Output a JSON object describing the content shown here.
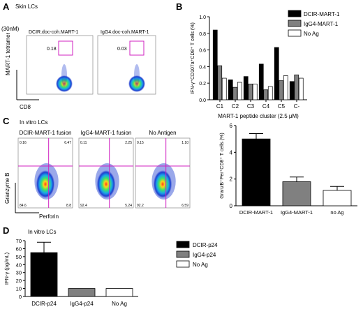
{
  "panelA": {
    "letter": "A",
    "subtitle": "Skin LCs",
    "dose": "(30nM)",
    "ylabel": "MART-1 tetramer",
    "xlabel": "CD8",
    "plots": [
      {
        "title": "DCIR.doc-coh.MART-1",
        "gate_value": "0.18"
      },
      {
        "title": "IgG4.doc-coh.MART-1",
        "gate_value": "0.03"
      }
    ]
  },
  "panelC_flow": {
    "letter": "C",
    "subtitle": "In vitro LCs",
    "ylabel": "Granzyme B",
    "xlabel": "Perforin",
    "plots": [
      {
        "title": "DCIR-MART-1 fusion",
        "quadrants": [
          "0.16",
          "6.47",
          "84.6",
          "8.8"
        ]
      },
      {
        "title": "IgG4-MART-1 fusion",
        "quadrants": [
          "0.11",
          "2.25",
          "92.4",
          "5.24"
        ]
      },
      {
        "title": "No Antigen",
        "quadrants": [
          "0.15",
          "1.10",
          "92.2",
          "6.59"
        ]
      }
    ]
  },
  "chart_data": [
    {
      "panel": "B",
      "type": "bar",
      "categories": [
        "C1",
        "C2",
        "C3",
        "C4",
        "C5",
        "C-"
      ],
      "series": [
        {
          "name": "DCIR-MART-1",
          "color": "#000000",
          "values": [
            0.84,
            0.24,
            0.28,
            0.43,
            0.63,
            0.22
          ]
        },
        {
          "name": "IgG4-MART-1",
          "color": "#808080",
          "values": [
            0.41,
            0.15,
            0.19,
            0.12,
            0.23,
            0.3
          ]
        },
        {
          "name": "No Ag",
          "color": "#ffffff",
          "values": [
            0.26,
            0.21,
            0.19,
            0.16,
            0.29,
            0.26
          ]
        }
      ],
      "yticks": [
        "0.0",
        "0.2",
        "0.4",
        "0.6",
        "0.8",
        "1.0"
      ],
      "ylim": [
        0,
        1.0
      ],
      "ylabel": "IFN-γ⁺CD107a⁺CD8⁺ T cells (%)",
      "xlabel": "MART-1 peptide cluster (2.5 μM)",
      "legend": "top-right"
    },
    {
      "panel": "C",
      "type": "bar",
      "categories": [
        "DCIR-MART-1",
        "IgG4-MART-1",
        "no Ag"
      ],
      "colors": [
        "#000000",
        "#808080",
        "#ffffff"
      ],
      "values": [
        5.0,
        1.8,
        1.15
      ],
      "errors": [
        0.4,
        0.35,
        0.3
      ],
      "yticks": [
        "0",
        "2",
        "4",
        "6"
      ],
      "ylim": [
        0,
        6
      ],
      "ylabel": "GranzB⁺Per⁺CD8⁺ T cells (%)"
    },
    {
      "panel": "D",
      "letter": "D",
      "subtitle": "In vitro LCs",
      "type": "bar",
      "categories": [
        "DCIR-p24",
        "IgG4-p24",
        "No Ag"
      ],
      "colors": [
        "#000000",
        "#808080",
        "#ffffff"
      ],
      "values": [
        55,
        10,
        10
      ],
      "errors": [
        13,
        0,
        0
      ],
      "yticks": [
        "0",
        "10",
        "20",
        "30",
        "40",
        "50",
        "60",
        "70"
      ],
      "ylim": [
        0,
        70
      ],
      "ylabel": "IFN-γ (pg/mL)",
      "legend_labels": [
        "DCIR-p24",
        "IgG4-p24",
        "No Ag"
      ],
      "legend": "right"
    }
  ]
}
